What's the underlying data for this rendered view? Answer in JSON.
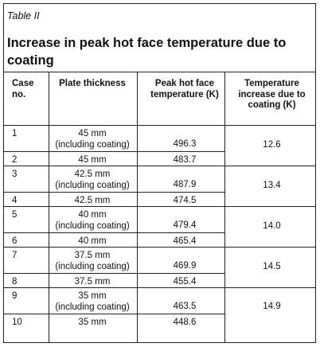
{
  "table": {
    "label": "Table II",
    "title": "Increase in peak hot face temperature due to coating",
    "headers": {
      "case": [
        "Case",
        "no."
      ],
      "plate": [
        "Plate thickness"
      ],
      "peak": [
        "Peak hot face",
        "temperature (K)"
      ],
      "increase": [
        "Temperature",
        "increase due to",
        "coating (K)"
      ]
    },
    "rows": [
      {
        "case": "1",
        "plate": [
          "45 mm",
          "(including coating)"
        ],
        "peak": "496.3"
      },
      {
        "case": "2",
        "plate": [
          "45 mm"
        ],
        "peak": "483.7"
      },
      {
        "case": "3",
        "plate": [
          "42.5 mm",
          "(including coating)"
        ],
        "peak": "487.9"
      },
      {
        "case": "4",
        "plate": [
          "42.5 mm"
        ],
        "peak": "474.5"
      },
      {
        "case": "5",
        "plate": [
          "40 mm",
          "(including coating)"
        ],
        "peak": "479.4"
      },
      {
        "case": "6",
        "plate": [
          "40 mm"
        ],
        "peak": "465.4"
      },
      {
        "case": "7",
        "plate": [
          "37.5 mm",
          "(including coating)"
        ],
        "peak": "469.9"
      },
      {
        "case": "8",
        "plate": [
          "37.5 mm"
        ],
        "peak": "455.4"
      },
      {
        "case": "9",
        "plate": [
          "35 mm",
          "(including coating)"
        ],
        "peak": "463.5"
      },
      {
        "case": "10",
        "plate": [
          "35 mm"
        ],
        "peak": "448.6"
      }
    ],
    "increases": [
      "12.6",
      "13.4",
      "14.0",
      "14.5",
      "14.9"
    ]
  }
}
